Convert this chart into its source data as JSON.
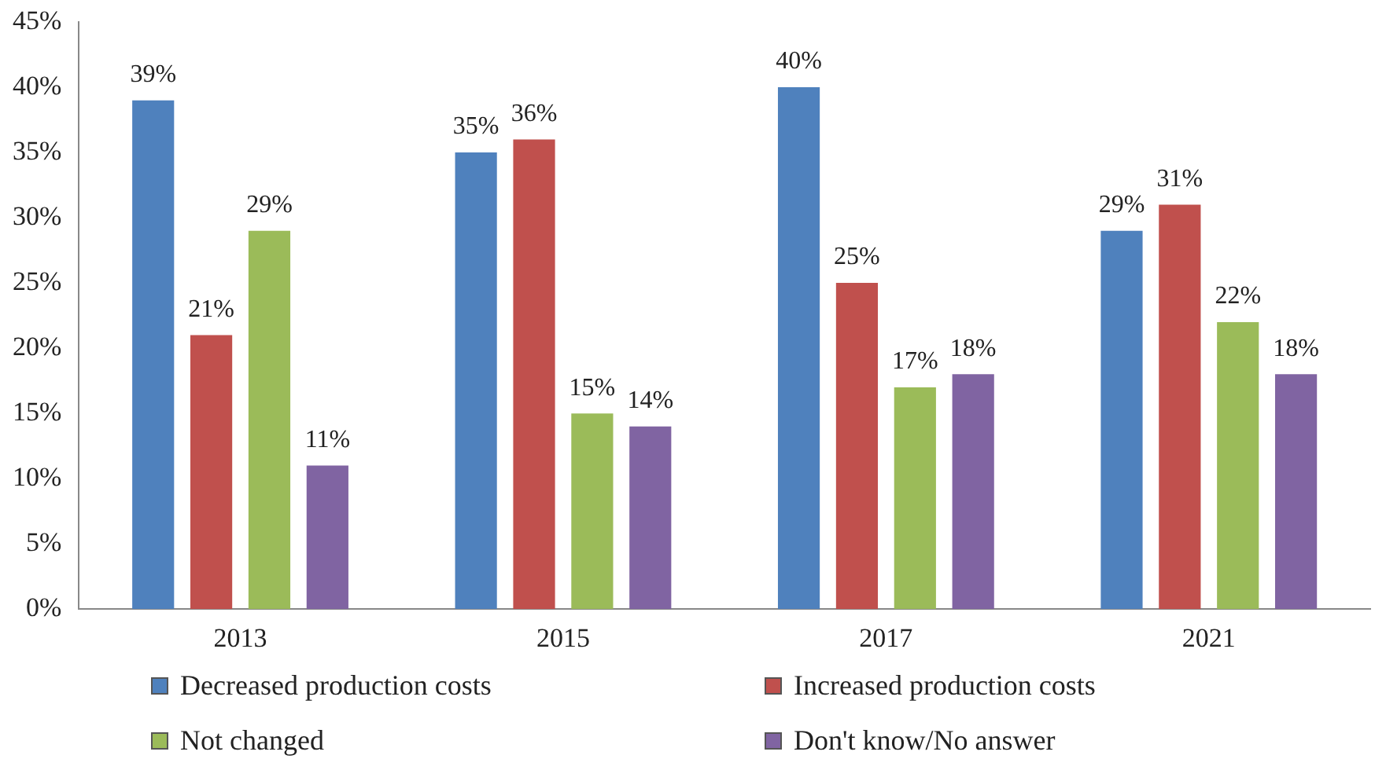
{
  "chart_data": {
    "type": "bar",
    "categories": [
      "2013",
      "2015",
      "2017",
      "2021"
    ],
    "series": [
      {
        "name": "Decreased production costs",
        "color": "#4f81bd",
        "values": [
          39,
          35,
          40,
          29
        ],
        "value_labels": [
          "39%",
          "35%",
          "40%",
          "29%"
        ]
      },
      {
        "name": "Increased production costs",
        "color": "#c0504d",
        "values": [
          21,
          36,
          25,
          31
        ],
        "value_labels": [
          "21%",
          "36%",
          "25%",
          "31%"
        ]
      },
      {
        "name": "Not changed",
        "color": "#9bbb59",
        "values": [
          29,
          15,
          17,
          22
        ],
        "value_labels": [
          "29%",
          "15%",
          "17%",
          "22%"
        ]
      },
      {
        "name": "Don't know/No answer",
        "color": "#8064a2",
        "values": [
          11,
          14,
          18,
          18
        ],
        "value_labels": [
          "11%",
          "14%",
          "18%",
          "18%"
        ]
      }
    ],
    "ylim": [
      0,
      45
    ],
    "yticks": [
      {
        "value": 0,
        "label": "0%"
      },
      {
        "value": 5,
        "label": "5%"
      },
      {
        "value": 10,
        "label": "10%"
      },
      {
        "value": 15,
        "label": "15%"
      },
      {
        "value": 20,
        "label": "20%"
      },
      {
        "value": 25,
        "label": "25%"
      },
      {
        "value": 30,
        "label": "30%"
      },
      {
        "value": 35,
        "label": "35%"
      },
      {
        "value": 40,
        "label": "40%"
      },
      {
        "value": 45,
        "label": "45%"
      }
    ],
    "legend": "bottom",
    "grid": false
  }
}
